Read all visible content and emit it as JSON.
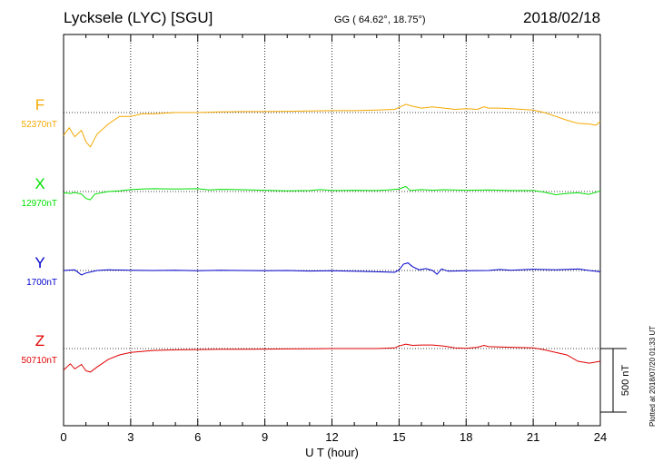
{
  "header": {
    "title": "Lycksele (LYC)  [SGU]",
    "coordinates": "GG ( 64.62°,  18.75°)",
    "date": "2018/02/18"
  },
  "footer": {
    "plotted_note": "Plotted at 2018/07/20 01:33 UT"
  },
  "chart_data": {
    "type": "line",
    "xlabel": "U T (hour)",
    "xlim": [
      0,
      24
    ],
    "xticks": [
      0,
      3,
      6,
      9,
      12,
      15,
      18,
      21,
      24
    ],
    "grid": true,
    "scale_bar": {
      "label": "500 nT",
      "value_nT": 500
    },
    "series": [
      {
        "name": "F",
        "baseline_label": "52370nT",
        "baseline_nT": 52370,
        "color": "#f5a800",
        "points": [
          [
            0,
            52190
          ],
          [
            0.25,
            52250
          ],
          [
            0.5,
            52180
          ],
          [
            0.8,
            52230
          ],
          [
            1.0,
            52140
          ],
          [
            1.2,
            52100
          ],
          [
            1.5,
            52200
          ],
          [
            2.0,
            52280
          ],
          [
            2.5,
            52340
          ],
          [
            3.0,
            52340
          ],
          [
            3.5,
            52360
          ],
          [
            4.0,
            52360
          ],
          [
            5.0,
            52370
          ],
          [
            6.0,
            52370
          ],
          [
            7.0,
            52375
          ],
          [
            8.0,
            52378
          ],
          [
            9.0,
            52378
          ],
          [
            10.0,
            52380
          ],
          [
            11.0,
            52382
          ],
          [
            12.0,
            52385
          ],
          [
            13.0,
            52385
          ],
          [
            14.0,
            52390
          ],
          [
            14.8,
            52395
          ],
          [
            15.0,
            52410
          ],
          [
            15.3,
            52435
          ],
          [
            15.6,
            52420
          ],
          [
            16.0,
            52405
          ],
          [
            16.5,
            52415
          ],
          [
            17.0,
            52405
          ],
          [
            17.5,
            52395
          ],
          [
            18.0,
            52400
          ],
          [
            18.5,
            52395
          ],
          [
            18.8,
            52415
          ],
          [
            19.0,
            52405
          ],
          [
            19.5,
            52405
          ],
          [
            20.0,
            52400
          ],
          [
            20.5,
            52395
          ],
          [
            21.0,
            52390
          ],
          [
            21.5,
            52370
          ],
          [
            22.0,
            52340
          ],
          [
            22.5,
            52310
          ],
          [
            23.0,
            52285
          ],
          [
            23.5,
            52280
          ],
          [
            23.8,
            52270
          ],
          [
            24.0,
            52300
          ]
        ]
      },
      {
        "name": "X",
        "baseline_label": "12970nT",
        "baseline_nT": 12970,
        "color": "#00e000",
        "points": [
          [
            0,
            12960
          ],
          [
            0.3,
            12955
          ],
          [
            0.5,
            12962
          ],
          [
            0.8,
            12950
          ],
          [
            1.0,
            12915
          ],
          [
            1.2,
            12905
          ],
          [
            1.4,
            12950
          ],
          [
            2.0,
            12970
          ],
          [
            2.5,
            12975
          ],
          [
            3.0,
            12985
          ],
          [
            3.5,
            12990
          ],
          [
            4.0,
            12992
          ],
          [
            5.0,
            12990
          ],
          [
            6.0,
            12992
          ],
          [
            6.5,
            12982
          ],
          [
            7.0,
            12987
          ],
          [
            8.0,
            12984
          ],
          [
            9.0,
            12980
          ],
          [
            10.0,
            12976
          ],
          [
            11.0,
            12978
          ],
          [
            11.5,
            12985
          ],
          [
            12.0,
            12978
          ],
          [
            13.0,
            12980
          ],
          [
            14.0,
            12978
          ],
          [
            14.5,
            12982
          ],
          [
            15.0,
            12990
          ],
          [
            15.3,
            13010
          ],
          [
            15.5,
            12978
          ],
          [
            16.0,
            12985
          ],
          [
            16.5,
            12980
          ],
          [
            17.0,
            12984
          ],
          [
            18.0,
            12980
          ],
          [
            19.0,
            12982
          ],
          [
            20.0,
            12978
          ],
          [
            21.0,
            12978
          ],
          [
            21.5,
            12965
          ],
          [
            22.0,
            12945
          ],
          [
            22.5,
            12955
          ],
          [
            23.0,
            12960
          ],
          [
            23.5,
            12948
          ],
          [
            24.0,
            12975
          ]
        ]
      },
      {
        "name": "Y",
        "baseline_label": "1700nT",
        "baseline_nT": 1700,
        "color": "#0000cc",
        "points": [
          [
            0,
            1700
          ],
          [
            0.5,
            1705
          ],
          [
            0.8,
            1665
          ],
          [
            1.0,
            1680
          ],
          [
            1.5,
            1700
          ],
          [
            2.0,
            1705
          ],
          [
            3.0,
            1702
          ],
          [
            4.0,
            1700
          ],
          [
            5.0,
            1702
          ],
          [
            6.0,
            1698
          ],
          [
            7.0,
            1702
          ],
          [
            8.0,
            1700
          ],
          [
            9.0,
            1698
          ],
          [
            10.0,
            1700
          ],
          [
            11.0,
            1696
          ],
          [
            12.0,
            1698
          ],
          [
            13.0,
            1694
          ],
          [
            14.0,
            1690
          ],
          [
            14.8,
            1686
          ],
          [
            15.0,
            1705
          ],
          [
            15.2,
            1750
          ],
          [
            15.4,
            1760
          ],
          [
            15.6,
            1730
          ],
          [
            15.9,
            1706
          ],
          [
            16.2,
            1715
          ],
          [
            16.5,
            1700
          ],
          [
            16.7,
            1670
          ],
          [
            16.9,
            1712
          ],
          [
            17.2,
            1694
          ],
          [
            18.0,
            1698
          ],
          [
            19.0,
            1700
          ],
          [
            19.5,
            1708
          ],
          [
            20.0,
            1702
          ],
          [
            21.0,
            1710
          ],
          [
            22.0,
            1706
          ],
          [
            23.0,
            1712
          ],
          [
            23.5,
            1700
          ],
          [
            24.0,
            1690
          ]
        ]
      },
      {
        "name": "Z",
        "baseline_label": "50710nT",
        "baseline_nT": 50710,
        "color": "#e00000",
        "points": [
          [
            0,
            50540
          ],
          [
            0.3,
            50590
          ],
          [
            0.5,
            50550
          ],
          [
            0.8,
            50585
          ],
          [
            1.0,
            50535
          ],
          [
            1.2,
            50525
          ],
          [
            1.5,
            50565
          ],
          [
            2.0,
            50625
          ],
          [
            2.5,
            50660
          ],
          [
            3.0,
            50680
          ],
          [
            4.0,
            50695
          ],
          [
            5.0,
            50700
          ],
          [
            6.0,
            50702
          ],
          [
            7.0,
            50705
          ],
          [
            8.0,
            50705
          ],
          [
            9.0,
            50706
          ],
          [
            10.0,
            50707
          ],
          [
            11.0,
            50708
          ],
          [
            12.0,
            50710
          ],
          [
            13.0,
            50710
          ],
          [
            14.0,
            50710
          ],
          [
            14.8,
            50715
          ],
          [
            15.0,
            50730
          ],
          [
            15.3,
            50745
          ],
          [
            15.6,
            50735
          ],
          [
            16.0,
            50738
          ],
          [
            16.5,
            50738
          ],
          [
            17.0,
            50730
          ],
          [
            17.5,
            50715
          ],
          [
            18.0,
            50712
          ],
          [
            18.5,
            50720
          ],
          [
            18.8,
            50735
          ],
          [
            19.0,
            50725
          ],
          [
            20.0,
            50720
          ],
          [
            21.0,
            50715
          ],
          [
            21.5,
            50700
          ],
          [
            22.0,
            50680
          ],
          [
            22.5,
            50660
          ],
          [
            23.0,
            50610
          ],
          [
            23.5,
            50595
          ],
          [
            24.0,
            50610
          ]
        ]
      }
    ]
  }
}
